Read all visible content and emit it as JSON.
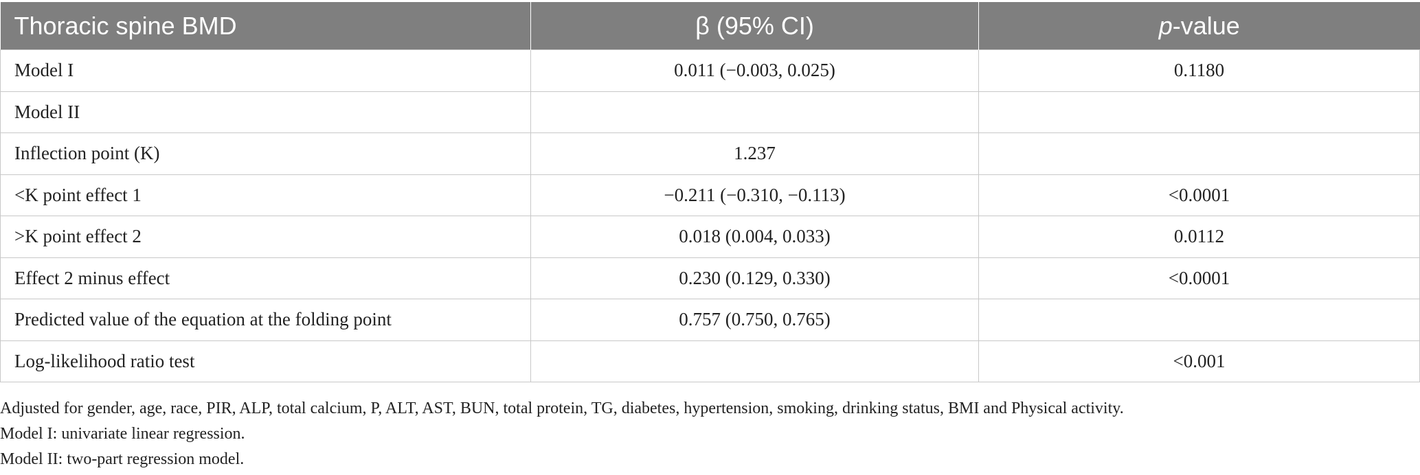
{
  "table": {
    "headers": {
      "col1": "Thoracic spine BMD",
      "col2": "β (95% CI)",
      "col3_italic": "p",
      "col3_rest": "-value"
    },
    "rows": [
      {
        "label": "Model I",
        "beta": "0.011 (−0.003, 0.025)",
        "p": "0.1180"
      },
      {
        "label": "Model II",
        "beta": "",
        "p": ""
      },
      {
        "label": "Inflection point (K)",
        "beta": "1.237",
        "p": ""
      },
      {
        "label": "<K point effect 1",
        "beta": "−0.211 (−0.310, −0.113)",
        "p": "<0.0001"
      },
      {
        "label": ">K point effect 2",
        "beta": "0.018 (0.004, 0.033)",
        "p": "0.0112"
      },
      {
        "label": "Effect 2 minus effect",
        "beta": "0.230 (0.129, 0.330)",
        "p": "<0.0001"
      },
      {
        "label": "Predicted value of the equation at the folding point",
        "beta": "0.757 (0.750, 0.765)",
        "p": ""
      },
      {
        "label": "Log-likelihood ratio test",
        "beta": "",
        "p": "<0.001"
      }
    ]
  },
  "notes": [
    "Adjusted for gender, age, race, PIR, ALP, total calcium, P, ALT, AST, BUN, total protein, TG, diabetes, hypertension, smoking, drinking status, BMI and Physical activity.",
    "Model I: univariate linear regression.",
    "Model II: two-part regression model."
  ]
}
